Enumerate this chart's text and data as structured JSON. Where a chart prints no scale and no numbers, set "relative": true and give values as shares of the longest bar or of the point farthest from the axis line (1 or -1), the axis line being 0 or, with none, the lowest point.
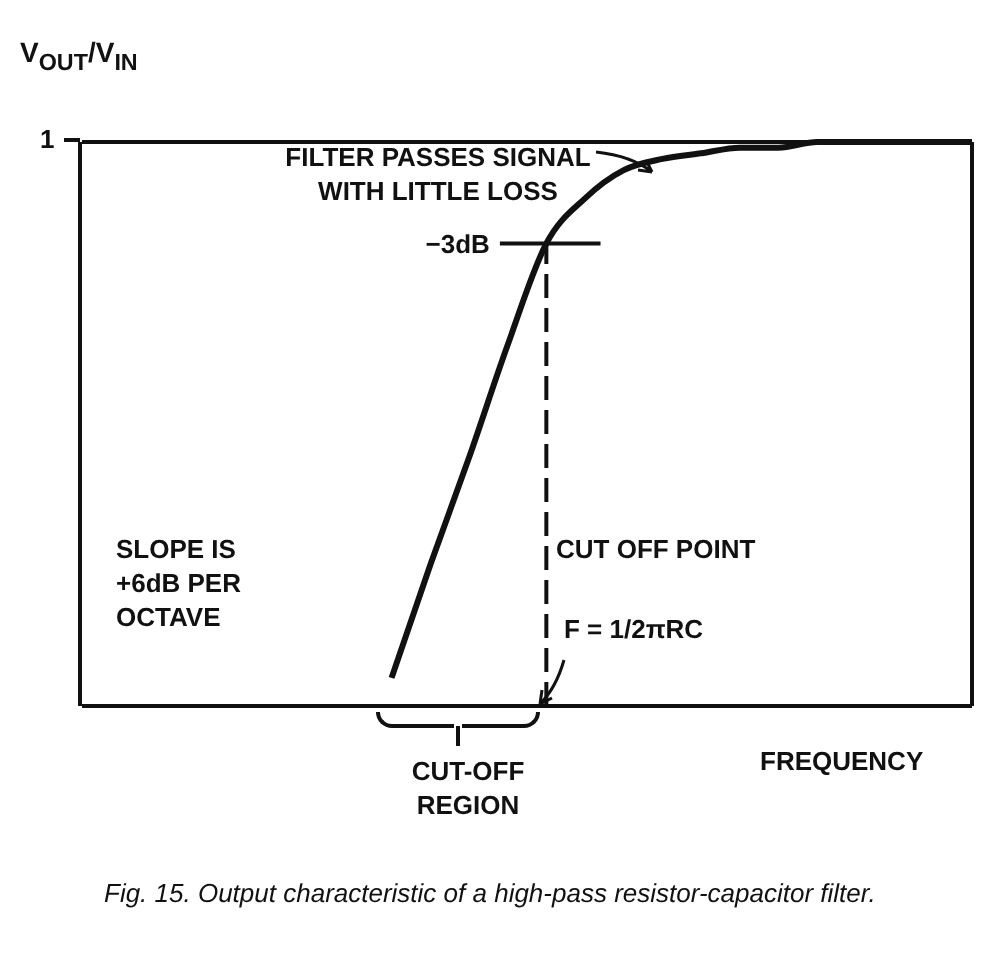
{
  "chart_data": {
    "type": "line",
    "relative": true,
    "ylabel": "V$_{OUT}$/V$_{IN}$",
    "xlabel": "FREQUENCY",
    "categories": [
      null,
      null,
      null,
      null,
      null,
      null,
      null,
      null,
      null,
      null,
      null,
      null,
      null,
      null,
      null,
      null,
      null,
      null,
      null,
      null,
      null,
      null,
      null,
      null
    ],
    "series": [
      {
        "color": "#111111",
        "values": [
          null,
          null,
          null,
          null,
          null,
          null,
          null,
          null,
          0.05,
          0.25,
          0.44,
          0.64,
          0.82,
          0.9,
          0.95,
          0.97,
          0.98,
          0.99,
          0.99,
          1,
          1,
          1,
          1,
          1
        ]
      }
    ],
    "ref_lines": [
      {
        "axis": "y",
        "value": 0.82,
        "label": "−3dB"
      }
    ],
    "annotations": [
      "1",
      "FILTER PASSES SIGNAL WITH LITTLE LOSS",
      "SLOPE IS +6dB PER OCTAVE",
      "CUT OFF POINT",
      "F = 1/2πRC",
      "CUT-OFF REGION",
      "Fig. 15.  Output characteristic of a high-pass resistor-capacitor filter."
    ],
    "marker": "none",
    "line_style": "solid"
  }
}
